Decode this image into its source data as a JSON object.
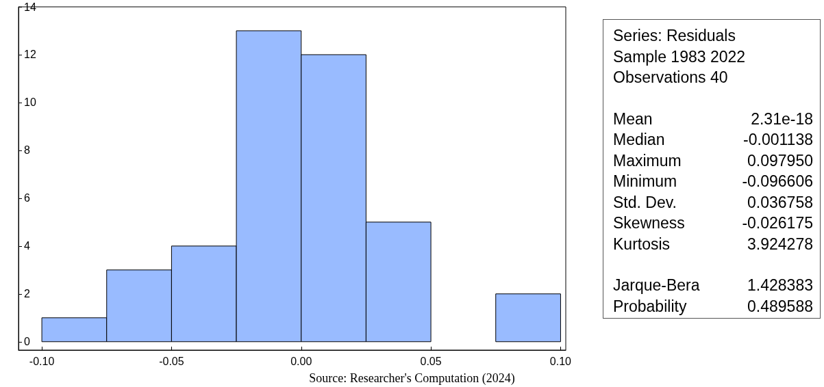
{
  "chart_data": [
    {
      "type": "histogram",
      "bins": [
        -0.1,
        -0.075,
        -0.05,
        -0.025,
        0,
        0.025,
        0.05,
        0.075,
        0.1
      ],
      "values": [
        1,
        3,
        4,
        13,
        12,
        5,
        0,
        2
      ],
      "color": "#99bbff",
      "xlim": [
        -0.109,
        0.102
      ],
      "xticks": [
        {
          "value": -0.1,
          "label": "-0.10"
        },
        {
          "value": -0.05,
          "label": "-0.05"
        },
        {
          "value": 0,
          "label": "0.00"
        },
        {
          "value": 0.05,
          "label": "0.05"
        },
        {
          "value": 0.1,
          "label": "0.10"
        }
      ],
      "ylim": [
        -0.35,
        14
      ],
      "yticks": [
        0,
        2,
        4,
        6,
        8,
        10,
        12,
        14
      ],
      "grid": false,
      "annotations": [
        "Source: Researcher's Computation (2024)"
      ]
    },
    {
      "type": "other",
      "annotations": [
        "Series: Residuals",
        "Sample 1983 2022",
        "Observations 40",
        "Mean",
        "2.31e-18",
        "Median",
        "-0.001138",
        "Maximum",
        "0.097950",
        "Minimum",
        "-0.096606",
        "Std. Dev.",
        "0.036758",
        "Skewness",
        "-0.026175",
        "Kurtosis",
        "3.924278",
        "Jarque-Bera",
        "1.428383",
        "Probability",
        "0.489588"
      ]
    }
  ]
}
